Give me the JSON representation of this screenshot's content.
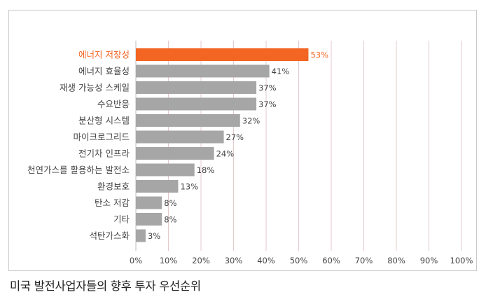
{
  "caption": "미국 발전사업자들의 향후 투자 우선순위",
  "chart_data": {
    "type": "bar",
    "orientation": "horizontal",
    "categories": [
      "에너지 저장성",
      "에너지 효율성",
      "재생 가능성 스케일",
      "수요반응",
      "분산형 시스템",
      "마이크로그리드",
      "전기차 인프라",
      "천연가스를 활용하는 발전소",
      "환경보호",
      "탄소 저감",
      "기타",
      "석탄가스화"
    ],
    "values": [
      53,
      41,
      37,
      37,
      32,
      27,
      24,
      18,
      13,
      8,
      8,
      3
    ],
    "value_labels": [
      "53%",
      "41%",
      "37%",
      "37%",
      "32%",
      "27%",
      "24%",
      "18%",
      "13%",
      "8%",
      "8%",
      "3%"
    ],
    "highlight_index": 0,
    "xlim": [
      0,
      100
    ],
    "xticks": [
      0,
      10,
      20,
      30,
      40,
      50,
      60,
      70,
      80,
      90,
      100
    ],
    "xtick_labels": [
      "0%",
      "10%",
      "20%",
      "30%",
      "40%",
      "50%",
      "60%",
      "70%",
      "80%",
      "90%",
      "100%"
    ],
    "grid": true,
    "colors": {
      "bar": "#a6a6a6",
      "highlight_bar": "#f26522",
      "highlight_text": "#f26522",
      "grid": "#e3c9cc",
      "text": "#444444"
    }
  }
}
